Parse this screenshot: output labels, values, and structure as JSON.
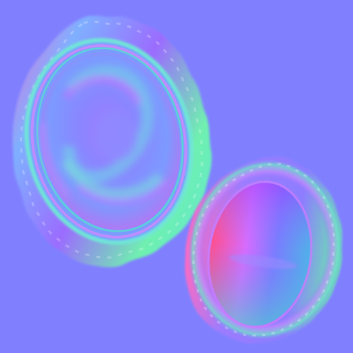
{
  "texture": {
    "kind": "normal-map",
    "background_color": "#8080ff",
    "colors": {
      "neutral": "#8080ff",
      "cyan": "#5fe4d8",
      "green": "#7ef0a0",
      "magenta": "#ff50c8",
      "pink": "#ff78b4",
      "violet": "#9b6cff",
      "blue": "#5a78ff",
      "light": "#b0b6ff"
    },
    "islands": [
      {
        "name": "large-oval-island",
        "ruffled_rim": true,
        "inner_groove": true
      },
      {
        "name": "small-oval-island",
        "ruffled_rim": true,
        "smooth_dome": true
      }
    ]
  }
}
